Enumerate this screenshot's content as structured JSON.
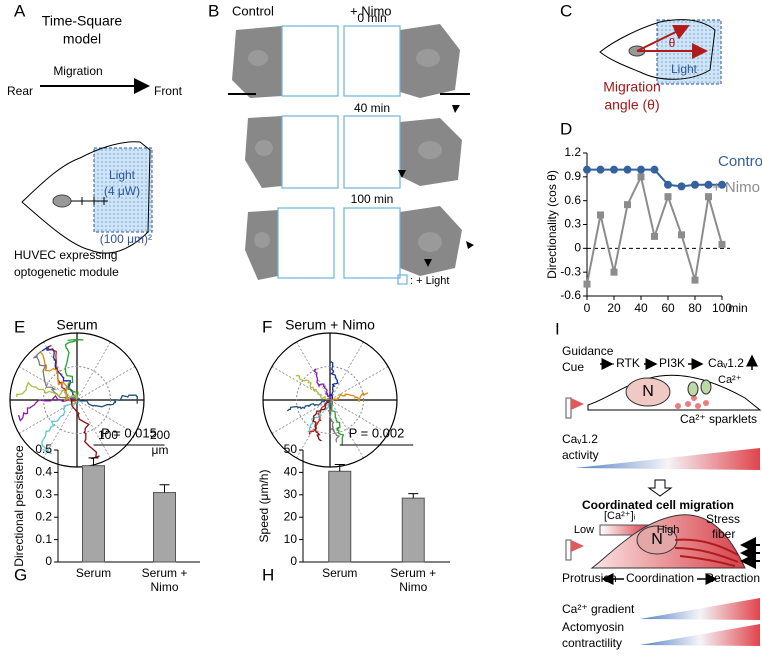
{
  "panel_labels": [
    "A",
    "B",
    "C",
    "D",
    "E",
    "F",
    "G",
    "H",
    "I"
  ],
  "panel_a": {
    "title": [
      "Time-Square",
      "model"
    ],
    "migration": "Migration",
    "rear": "Rear",
    "front": "Front",
    "light": [
      "Light",
      "(4 μW)"
    ],
    "area": "(100 μm)²",
    "caption": [
      "HUVEC expressing",
      "optogenetic module"
    ]
  },
  "panel_b": {
    "control": "Control",
    "nimo": "+ Nimo",
    "times": [
      "0 min",
      "40 min",
      "100 min"
    ],
    "legend": ": + Light"
  },
  "panel_c": {
    "theta": "θ",
    "angle": [
      "Migration",
      "angle (θ)"
    ],
    "light": "Light"
  },
  "panel_e": {
    "title": "Serum",
    "scale": [
      "100",
      "200",
      "μm"
    ]
  },
  "panel_f": {
    "title": "Serum + Nimo"
  },
  "panel_i": {
    "cue": [
      "Guidance",
      "Cue"
    ],
    "pathway": [
      "RTK",
      "PI3K",
      "Caᵥ1.2"
    ],
    "nucleus": [
      "N",
      "N"
    ],
    "ion": "Ca²⁺",
    "sparklets": "Ca²⁺ sparklets",
    "activity": [
      "Caᵥ1.2",
      "activity"
    ],
    "heading": "Coordinated cell migration",
    "scale": [
      "[Ca²⁺]ᵢ",
      "Low",
      "High"
    ],
    "fiber": [
      "Stress",
      "fiber"
    ],
    "process": [
      "Protrusion",
      "Coordination",
      "Retraction"
    ],
    "gradient": "Ca²⁺ gradient",
    "contractility": [
      "Actomyosin",
      "contractility"
    ]
  },
  "chart_data": [
    {
      "type": "line",
      "ylabel": "Directionality (cos θ)",
      "xlabel": "min",
      "x": [
        0,
        10,
        20,
        30,
        40,
        50,
        60,
        70,
        80,
        90,
        100
      ],
      "series": [
        {
          "name": "Control",
          "color": "#33629e",
          "marker": "circle",
          "values": [
            0.99,
            0.99,
            0.99,
            0.99,
            0.99,
            0.99,
            0.8,
            0.78,
            0.8,
            0.8,
            0.8
          ]
        },
        {
          "name": "+ Nimo",
          "color": "#8c8c8c",
          "marker": "square",
          "values": [
            -0.45,
            0.42,
            -0.3,
            0.55,
            0.9,
            0.15,
            0.65,
            0.17,
            -0.4,
            0.65,
            0.05
          ]
        }
      ],
      "xlim": [
        0,
        100
      ],
      "xticks": [
        0,
        20,
        40,
        60,
        80,
        100
      ],
      "ylim": [
        -0.6,
        1.2
      ],
      "yticks": [
        -0.6,
        -0.3,
        0,
        0.3,
        0.6,
        0.9,
        1.2
      ]
    },
    {
      "type": "bar",
      "ylabel": "Directional persistence",
      "categories": [
        "Serum",
        "Serum + Nimo"
      ],
      "values": [
        0.43,
        0.31
      ],
      "errors": [
        0.035,
        0.035
      ],
      "color": "#a6a6a6",
      "ylim": [
        0,
        0.5
      ],
      "yticks": [
        0,
        0.1,
        0.2,
        0.3,
        0.4,
        0.5
      ],
      "annotation": "P = 0.015"
    },
    {
      "type": "bar",
      "ylabel": "Speed (μm/h)",
      "categories": [
        "Serum",
        "Serum + Nimo"
      ],
      "values": [
        40.5,
        28.5
      ],
      "errors": [
        3,
        2
      ],
      "color": "#a6a6a6",
      "ylim": [
        0,
        50
      ],
      "yticks": [
        0,
        10,
        20,
        30,
        40,
        50
      ],
      "annotation": "P = 0.002"
    }
  ]
}
